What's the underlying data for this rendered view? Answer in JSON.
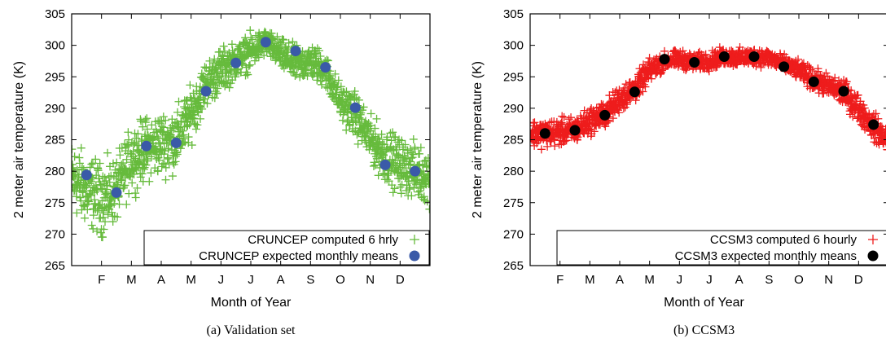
{
  "colors": {
    "cruncep_hourly": "#66bb3c",
    "cruncep_mean": "#3a5aa8",
    "ccsm3_hourly": "#ee1c1c",
    "ccsm3_mean": "#000000"
  },
  "chart_data": [
    {
      "type": "scatter",
      "caption": "(a) Validation set",
      "xlabel": "Month of Year",
      "ylabel": "2 meter air temperature (K)",
      "ylim": [
        265,
        305
      ],
      "yticks": [
        265,
        270,
        275,
        280,
        285,
        290,
        295,
        300,
        305
      ],
      "xlim": [
        0,
        12
      ],
      "xticks": [
        {
          "label": "F",
          "x": 1
        },
        {
          "label": "M",
          "x": 2
        },
        {
          "label": "A",
          "x": 3
        },
        {
          "label": "M",
          "x": 4
        },
        {
          "label": "J",
          "x": 5
        },
        {
          "label": "J",
          "x": 6
        },
        {
          "label": "A",
          "x": 7
        },
        {
          "label": "S",
          "x": 8
        },
        {
          "label": "O",
          "x": 9
        },
        {
          "label": "N",
          "x": 10
        },
        {
          "label": "D",
          "x": 11
        }
      ],
      "legend_position": "bottom-right",
      "series": [
        {
          "name": "CRUNCEP computed 6 hrly",
          "marker": "plus",
          "color": "#66bb3c",
          "envelope": {
            "x": [
              0,
              0.5,
              1,
              1.5,
              2,
              2.5,
              3,
              3.5,
              4,
              4.5,
              5,
              5.5,
              6,
              6.5,
              7,
              7.5,
              8,
              8.5,
              9,
              9.5,
              10,
              10.5,
              11,
              11.5,
              12
            ],
            "y": [
              279,
              277,
              275.5,
              277,
              282,
              283.5,
              284.5,
              285,
              289,
              294,
              296,
              297.5,
              299,
              300.5,
              298.5,
              297,
              297.5,
              296,
              291,
              289,
              285,
              282.5,
              281,
              280,
              279
            ],
            "spread": [
              8,
              8,
              8,
              7,
              7,
              7,
              7,
              7,
              6,
              5,
              5,
              4,
              4,
              3,
              3.5,
              4,
              4,
              4,
              4,
              5,
              5,
              6,
              6,
              6,
              6
            ]
          }
        },
        {
          "name": "CRUNCEP expected monthly means",
          "marker": "circle",
          "color": "#3a5aa8",
          "x": [
            0.5,
            1.5,
            2.5,
            3.5,
            4.5,
            5.5,
            6.5,
            7.5,
            8.5,
            9.5,
            10.5,
            11.5
          ],
          "y": [
            279.4,
            276.6,
            284.0,
            284.5,
            292.7,
            297.2,
            300.5,
            299.1,
            296.5,
            290.1,
            281.0,
            280.0
          ]
        }
      ]
    },
    {
      "type": "scatter",
      "caption": "(b) CCSM3",
      "xlabel": "Month of Year",
      "ylabel": "2 meter air temperature (K)",
      "ylim": [
        265,
        305
      ],
      "yticks": [
        265,
        270,
        275,
        280,
        285,
        290,
        295,
        300,
        305
      ],
      "xlim": [
        0,
        12
      ],
      "xticks": [
        {
          "label": "F",
          "x": 1
        },
        {
          "label": "M",
          "x": 2
        },
        {
          "label": "A",
          "x": 3
        },
        {
          "label": "M",
          "x": 4
        },
        {
          "label": "J",
          "x": 5
        },
        {
          "label": "J",
          "x": 6
        },
        {
          "label": "A",
          "x": 7
        },
        {
          "label": "S",
          "x": 8
        },
        {
          "label": "O",
          "x": 9
        },
        {
          "label": "N",
          "x": 10
        },
        {
          "label": "D",
          "x": 11
        }
      ],
      "legend_position": "bottom-right",
      "series": [
        {
          "name": "CCSM3 computed 6 hourly",
          "marker": "plus",
          "color": "#ee1c1c",
          "envelope": {
            "x": [
              0,
              0.5,
              1,
              1.5,
              2,
              2.5,
              3,
              3.5,
              4,
              4.5,
              5,
              5.5,
              6,
              6.5,
              7,
              7.5,
              8,
              8.5,
              9,
              9.5,
              10,
              10.5,
              11,
              11.5,
              12
            ],
            "y": [
              286,
              286,
              286.2,
              286.5,
              288,
              289,
              291.5,
              293,
              296,
              297.5,
              297.8,
              297.3,
              297.5,
              298.2,
              298,
              298.2,
              298,
              297,
              296,
              294.5,
              293.5,
              292.5,
              290,
              287,
              285
            ],
            "spread": [
              3,
              3,
              3,
              3,
              3,
              3,
              3,
              3,
              2.5,
              2,
              2,
              2,
              2,
              2,
              2,
              2,
              2,
              2,
              2,
              2.5,
              2.5,
              3,
              3,
              3,
              3
            ]
          }
        },
        {
          "name": "CCSM3 expected monthly means",
          "marker": "circle",
          "color": "#000000",
          "x": [
            0.5,
            1.5,
            2.5,
            3.5,
            4.5,
            5.5,
            6.5,
            7.5,
            8.5,
            9.5,
            10.5,
            11.5
          ],
          "y": [
            286.0,
            286.5,
            288.9,
            292.6,
            297.8,
            297.3,
            298.2,
            298.2,
            296.6,
            294.2,
            292.7,
            287.4
          ]
        }
      ]
    }
  ]
}
